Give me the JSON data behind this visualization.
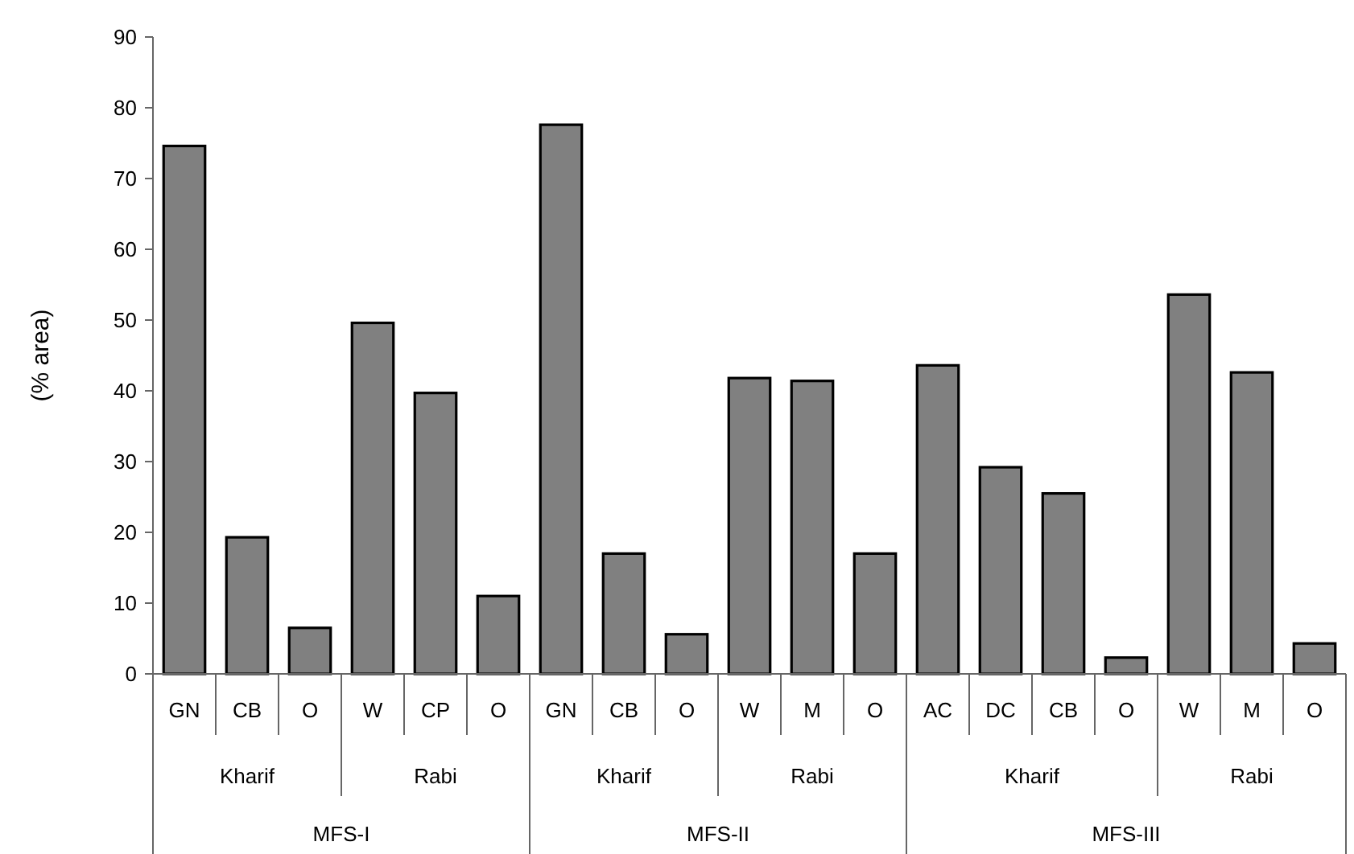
{
  "chart_data": {
    "type": "bar",
    "ylabel": "(% area)",
    "categories": [
      "GN",
      "CB",
      "O",
      "W",
      "CP",
      "O",
      "GN",
      "CB",
      "O",
      "W",
      "M",
      "O",
      "AC",
      "DC",
      "CB",
      "O",
      "W",
      "M",
      "O"
    ],
    "values": [
      74.6,
      19.3,
      6.5,
      49.6,
      39.7,
      11.0,
      77.6,
      17.0,
      5.6,
      41.8,
      41.4,
      17.0,
      43.6,
      29.2,
      25.5,
      2.3,
      53.6,
      42.6,
      4.3
    ],
    "color": "#808080",
    "ylim": [
      0,
      90
    ],
    "yticks": [
      0,
      10,
      20,
      30,
      40,
      50,
      60,
      70,
      80,
      90
    ],
    "grid": false,
    "annotations": [
      "Kharif",
      "Rabi",
      "Kharif",
      "Rabi",
      "Kharif",
      "Rabi",
      "MFS-I",
      "MFS-II",
      "MFS-III"
    ]
  }
}
